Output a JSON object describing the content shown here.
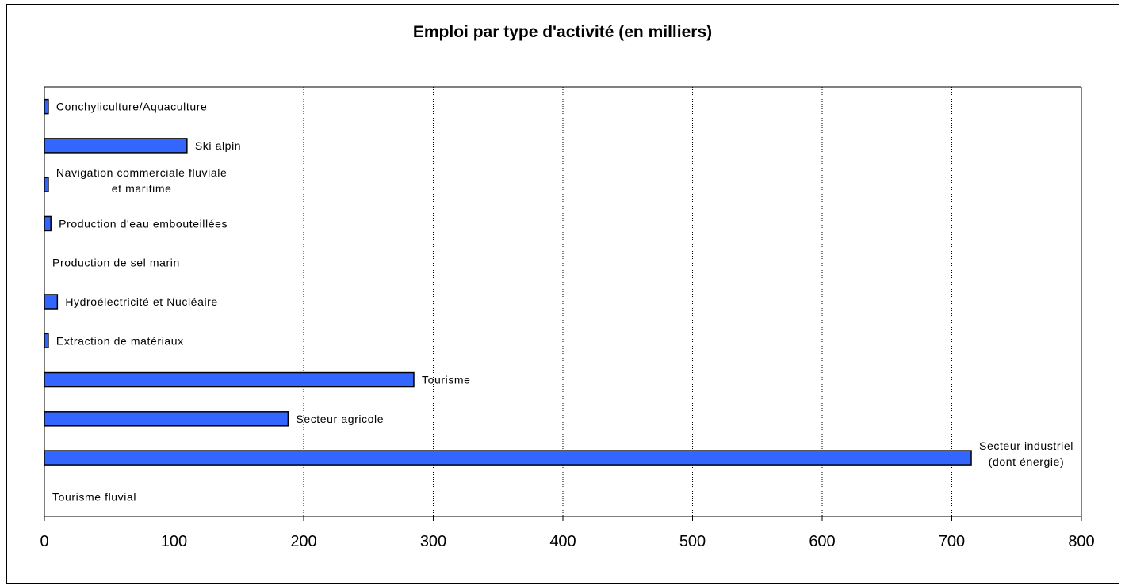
{
  "chart_data": {
    "type": "bar",
    "orientation": "horizontal",
    "title": "Emploi par type d'activité (en milliers)",
    "xlabel": "",
    "ylabel": "",
    "xlim": [
      0,
      800
    ],
    "x_ticks": [
      "0",
      "100",
      "200",
      "300",
      "400",
      "500",
      "600",
      "700",
      "800"
    ],
    "grid": "vertical dotted",
    "bar_color": "#3366ff",
    "categories": [
      [
        "Conchyliculture/Aquaculture"
      ],
      [
        "Ski alpin"
      ],
      [
        "Navigation commerciale fluviale",
        "et maritime"
      ],
      [
        "Production d'eau embouteillées"
      ],
      [
        "Production de sel marin"
      ],
      [
        "Hydroélectricité et Nucléaire"
      ],
      [
        "Extraction de matériaux"
      ],
      [
        "Tourisme"
      ],
      [
        "Secteur agricole"
      ],
      [
        "Secteur industriel",
        "(dont énergie)"
      ],
      [
        "Tourisme fluvial"
      ]
    ],
    "values": [
      3,
      110,
      3,
      5,
      0,
      10,
      3,
      285,
      188,
      715,
      0
    ]
  }
}
